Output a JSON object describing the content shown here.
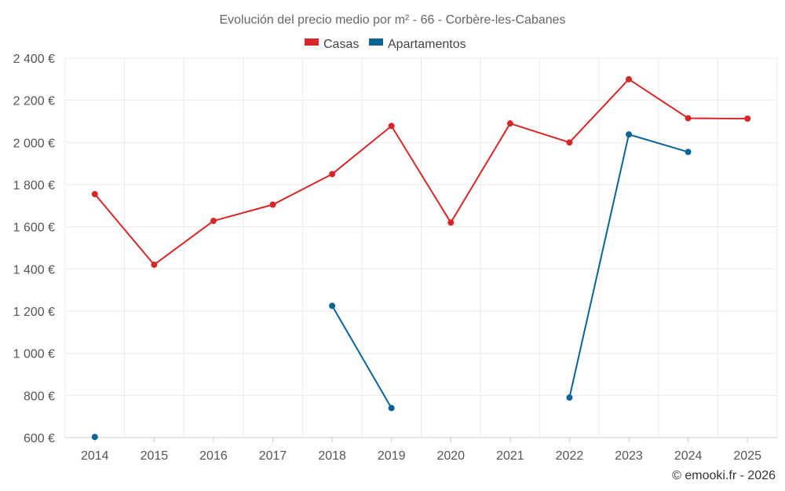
{
  "chart_data": {
    "type": "line",
    "title": "Evolución del precio medio por m² - 66 - Corbère-les-Cabanes",
    "categories": [
      "2014",
      "2015",
      "2016",
      "2017",
      "2018",
      "2019",
      "2020",
      "2021",
      "2022",
      "2023",
      "2024",
      "2025"
    ],
    "y_ticks": [
      600,
      800,
      1000,
      1200,
      1400,
      1600,
      1800,
      2000,
      2200,
      2400
    ],
    "y_tick_labels": [
      "600 €",
      "800 €",
      "1 000 €",
      "1 200 €",
      "1 400 €",
      "1 600 €",
      "1 800 €",
      "2 000 €",
      "2 200 €",
      "2 400 €"
    ],
    "ylim": [
      600,
      2400
    ],
    "grid": true,
    "legend_position": "top-center",
    "series": [
      {
        "name": "Casas",
        "color": "#d62728",
        "values": [
          1755,
          1420,
          1628,
          1705,
          1850,
          2078,
          1620,
          2090,
          2000,
          2300,
          2115,
          2113
        ]
      },
      {
        "name": "Apartamentos",
        "color": "#0a6496",
        "values": [
          603,
          null,
          null,
          null,
          1225,
          740,
          null,
          null,
          790,
          2038,
          1955,
          null
        ]
      }
    ],
    "credit": "© emooki.fr - 2026"
  }
}
